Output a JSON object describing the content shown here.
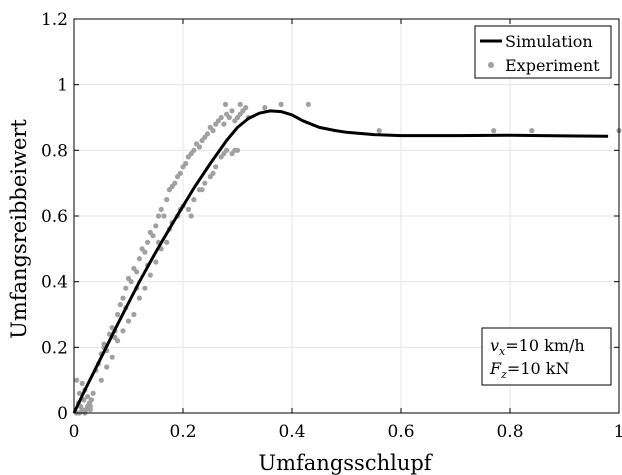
{
  "chart_data": {
    "type": "scatter",
    "xlabel": "Umfangsschlupf",
    "ylabel": "Umfangsreibbeiwert",
    "xlim": [
      0,
      1
    ],
    "ylim": [
      0,
      1.2
    ],
    "xticks": [
      0,
      0.2,
      0.4,
      0.6,
      0.8,
      1
    ],
    "yticks": [
      0,
      0.2,
      0.4,
      0.6,
      0.8,
      1,
      1.2
    ],
    "xtick_labels": [
      "0",
      "0.2",
      "0.4",
      "0.6",
      "0.8",
      "1"
    ],
    "ytick_labels": [
      "0",
      "0.2",
      "0.4",
      "0.6",
      "0.8",
      "1",
      "1.2"
    ],
    "grid": true,
    "legend_position": "top-right",
    "series": [
      {
        "name": "Simulation",
        "kind": "line",
        "color": "#000000",
        "x": [
          0,
          0.02,
          0.05,
          0.08,
          0.1,
          0.12,
          0.15,
          0.18,
          0.2,
          0.22,
          0.25,
          0.28,
          0.3,
          0.32,
          0.34,
          0.36,
          0.38,
          0.4,
          0.42,
          0.45,
          0.48,
          0.5,
          0.55,
          0.6,
          0.7,
          0.8,
          0.9,
          0.98
        ],
        "y": [
          0,
          0.07,
          0.17,
          0.27,
          0.335,
          0.4,
          0.49,
          0.575,
          0.63,
          0.685,
          0.76,
          0.83,
          0.87,
          0.897,
          0.913,
          0.92,
          0.918,
          0.908,
          0.89,
          0.87,
          0.86,
          0.855,
          0.848,
          0.845,
          0.845,
          0.846,
          0.844,
          0.843
        ]
      },
      {
        "name": "Experiment",
        "kind": "scatter",
        "color": "#a0a0a0",
        "x": [
          0.005,
          0.008,
          0.01,
          0.012,
          0.015,
          0.018,
          0.02,
          0.022,
          0.025,
          0.028,
          0.03,
          0.032,
          0.035,
          0.005,
          0.01,
          0.015,
          0.02,
          0.025,
          0.03,
          0.04,
          0.045,
          0.05,
          0.055,
          0.06,
          0.065,
          0.07,
          0.075,
          0.08,
          0.085,
          0.09,
          0.095,
          0.1,
          0.105,
          0.11,
          0.115,
          0.12,
          0.125,
          0.13,
          0.135,
          0.14,
          0.145,
          0.15,
          0.155,
          0.16,
          0.165,
          0.17,
          0.175,
          0.18,
          0.185,
          0.19,
          0.195,
          0.2,
          0.205,
          0.21,
          0.215,
          0.22,
          0.225,
          0.23,
          0.235,
          0.24,
          0.245,
          0.25,
          0.255,
          0.26,
          0.265,
          0.27,
          0.275,
          0.28,
          0.285,
          0.29,
          0.295,
          0.3,
          0.305,
          0.31,
          0.315,
          0.32,
          0.05,
          0.06,
          0.07,
          0.08,
          0.09,
          0.1,
          0.11,
          0.12,
          0.13,
          0.14,
          0.15,
          0.16,
          0.17,
          0.18,
          0.19,
          0.2,
          0.21,
          0.22,
          0.23,
          0.24,
          0.25,
          0.26,
          0.27,
          0.28,
          0.29,
          0.3,
          0.055,
          0.075,
          0.095,
          0.115,
          0.135,
          0.155,
          0.175,
          0.195,
          0.215,
          0.235,
          0.255,
          0.275,
          0.295,
          0.278,
          0.305,
          0.35,
          0.38,
          0.43,
          0.56,
          0.77,
          0.84,
          1.0
        ],
        "y": [
          0.1,
          0.03,
          0.06,
          0.02,
          0.09,
          0.04,
          0.07,
          0.01,
          0.05,
          0.03,
          0.02,
          0.04,
          0.06,
          0.0,
          0.0,
          0.01,
          0.0,
          0.02,
          0.01,
          0.13,
          0.15,
          0.18,
          0.21,
          0.19,
          0.24,
          0.26,
          0.23,
          0.3,
          0.33,
          0.35,
          0.38,
          0.41,
          0.4,
          0.44,
          0.43,
          0.47,
          0.5,
          0.49,
          0.52,
          0.55,
          0.54,
          0.57,
          0.6,
          0.62,
          0.6,
          0.65,
          0.68,
          0.69,
          0.7,
          0.72,
          0.73,
          0.75,
          0.76,
          0.78,
          0.79,
          0.8,
          0.82,
          0.81,
          0.83,
          0.84,
          0.85,
          0.87,
          0.86,
          0.88,
          0.89,
          0.9,
          0.88,
          0.91,
          0.9,
          0.92,
          0.89,
          0.9,
          0.91,
          0.92,
          0.93,
          0.9,
          0.1,
          0.14,
          0.17,
          0.22,
          0.25,
          0.28,
          0.3,
          0.35,
          0.38,
          0.42,
          0.46,
          0.5,
          0.52,
          0.58,
          0.6,
          0.63,
          0.62,
          0.65,
          0.68,
          0.7,
          0.72,
          0.75,
          0.78,
          0.8,
          0.79,
          0.8,
          0.2,
          0.25,
          0.32,
          0.38,
          0.45,
          0.52,
          0.56,
          0.62,
          0.6,
          0.68,
          0.73,
          0.79,
          0.8,
          0.94,
          0.94,
          0.93,
          0.94,
          0.94,
          0.86,
          0.86,
          0.86,
          0.86
        ]
      }
    ],
    "annotations": [
      {
        "label": "v",
        "sub": "x",
        "text": "=10 km/h"
      },
      {
        "label": "F",
        "sub": "z",
        "text": "=10 kN"
      }
    ]
  }
}
